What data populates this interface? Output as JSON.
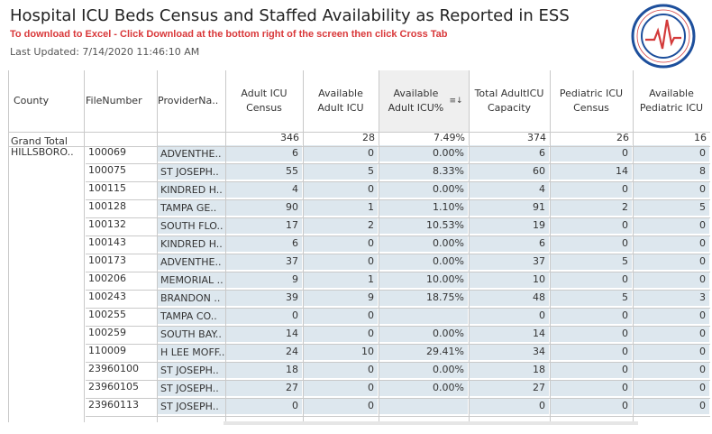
{
  "header": {
    "title": "Hospital ICU Beds Census and Staffed Availability as Reported in ESS",
    "download_text": "To download to Excel - Click Download at the bottom right of the screen then click Cross Tab",
    "last_updated": "Last Updated: 7/14/2020 11:46:10 AM"
  },
  "table": {
    "columns": {
      "county": "County",
      "file_number": "FileNumber",
      "provider": "ProviderNa..",
      "adult_icu_census": "Adult ICU Census",
      "available_adult_icu": "Available Adult ICU",
      "available_adult_pct": "Available Adult ICU%",
      "total_capacity": "Total AdultICU Capacity",
      "pediatric_census": "Pediatric ICU Census",
      "available_pediatric": "Available Pediatric ICU"
    },
    "grand_total": {
      "label": "Grand Total",
      "values": [
        "346",
        "28",
        "7.49%",
        "374",
        "26",
        "16"
      ]
    },
    "county_name": "HILLSBORO..",
    "rows": [
      {
        "file": "100069",
        "provider": "ADVENTHE..",
        "values": [
          "6",
          "0",
          "0.00%",
          "6",
          "0",
          "0"
        ]
      },
      {
        "file": "100075",
        "provider": "ST JOSEPH..",
        "values": [
          "55",
          "5",
          "8.33%",
          "60",
          "14",
          "8"
        ]
      },
      {
        "file": "100115",
        "provider": "KINDRED H..",
        "values": [
          "4",
          "0",
          "0.00%",
          "4",
          "0",
          "0"
        ]
      },
      {
        "file": "100128",
        "provider": "TAMPA GE..",
        "values": [
          "90",
          "1",
          "1.10%",
          "91",
          "2",
          "5"
        ]
      },
      {
        "file": "100132",
        "provider": "SOUTH FLO..",
        "values": [
          "17",
          "2",
          "10.53%",
          "19",
          "0",
          "0"
        ]
      },
      {
        "file": "100143",
        "provider": "KINDRED H..",
        "values": [
          "6",
          "0",
          "0.00%",
          "6",
          "0",
          "0"
        ]
      },
      {
        "file": "100173",
        "provider": "ADVENTHE..",
        "values": [
          "37",
          "0",
          "0.00%",
          "37",
          "5",
          "0"
        ]
      },
      {
        "file": "100206",
        "provider": "MEMORIAL ..",
        "values": [
          "9",
          "1",
          "10.00%",
          "10",
          "0",
          "0"
        ]
      },
      {
        "file": "100243",
        "provider": "BRANDON ..",
        "values": [
          "39",
          "9",
          "18.75%",
          "48",
          "5",
          "3"
        ]
      },
      {
        "file": "100255",
        "provider": "TAMPA CO..",
        "values": [
          "0",
          "0",
          "",
          "0",
          "0",
          "0"
        ]
      },
      {
        "file": "100259",
        "provider": "SOUTH BAY..",
        "values": [
          "14",
          "0",
          "0.00%",
          "14",
          "0",
          "0"
        ]
      },
      {
        "file": "110009",
        "provider": "H LEE MOFF..",
        "values": [
          "24",
          "10",
          "29.41%",
          "34",
          "0",
          "0"
        ]
      },
      {
        "file": "23960100",
        "provider": "ST JOSEPH..",
        "values": [
          "18",
          "0",
          "0.00%",
          "18",
          "0",
          "0"
        ]
      },
      {
        "file": "23960105",
        "provider": "ST JOSEPH..",
        "values": [
          "27",
          "0",
          "0.00%",
          "27",
          "0",
          "0"
        ]
      },
      {
        "file": "23960113",
        "provider": "ST JOSEPH..",
        "values": [
          "0",
          "0",
          "",
          "0",
          "0",
          "0"
        ]
      }
    ]
  },
  "colors": {
    "row_band": "#dde7ee",
    "download_red": "#d9383a",
    "logo_blue": "#1d4f9c",
    "logo_red": "#d33a3a"
  },
  "icons": {
    "sort": "sort-descending-icon",
    "logo": "state-seal-logo"
  }
}
